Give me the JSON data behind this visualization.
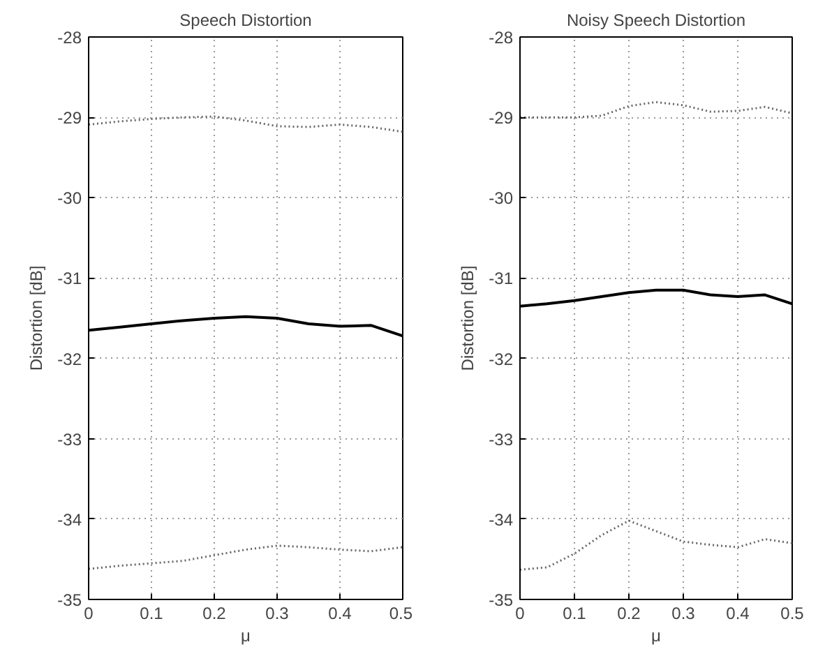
{
  "chart_data": [
    {
      "type": "line",
      "title": "Speech Distortion",
      "xlabel": "μ",
      "ylabel": "Distortion [dB]",
      "x": [
        0,
        0.05,
        0.1,
        0.15,
        0.2,
        0.25,
        0.3,
        0.35,
        0.4,
        0.45,
        0.5
      ],
      "xlim": [
        0,
        0.5
      ],
      "ylim": [
        -35,
        -28
      ],
      "xticks": [
        0,
        0.1,
        0.2,
        0.3,
        0.4,
        0.5
      ],
      "yticks": [
        -35,
        -34,
        -33,
        -32,
        -31,
        -30,
        -29,
        -28
      ],
      "grid": true,
      "series": [
        {
          "color": "#666666",
          "line_style": "dotted",
          "values": [
            -29.09,
            -29.05,
            -29.02,
            -29.0,
            -28.99,
            -29.04,
            -29.11,
            -29.12,
            -29.09,
            -29.12,
            -29.18
          ]
        },
        {
          "color": "#000000",
          "line_style": "solid",
          "values": [
            -31.65,
            -31.61,
            -31.57,
            -31.53,
            -31.5,
            -31.48,
            -31.5,
            -31.57,
            -31.6,
            -31.59,
            -31.72
          ]
        },
        {
          "color": "#666666",
          "line_style": "dotted",
          "values": [
            -34.62,
            -34.58,
            -34.55,
            -34.52,
            -34.45,
            -34.38,
            -34.33,
            -34.35,
            -34.38,
            -34.4,
            -34.35
          ]
        }
      ]
    },
    {
      "type": "line",
      "title": "Noisy Speech Distortion",
      "xlabel": "μ",
      "ylabel": "Distortion [dB]",
      "x": [
        0,
        0.05,
        0.1,
        0.15,
        0.2,
        0.25,
        0.3,
        0.35,
        0.4,
        0.45,
        0.5
      ],
      "xlim": [
        0,
        0.5
      ],
      "ylim": [
        -35,
        -28
      ],
      "xticks": [
        0,
        0.1,
        0.2,
        0.3,
        0.4,
        0.5
      ],
      "yticks": [
        -35,
        -34,
        -33,
        -32,
        -31,
        -30,
        -29,
        -28
      ],
      "grid": true,
      "series": [
        {
          "color": "#666666",
          "line_style": "dotted",
          "values": [
            -29.0,
            -29.0,
            -29.0,
            -28.98,
            -28.86,
            -28.81,
            -28.85,
            -28.93,
            -28.92,
            -28.87,
            -28.95
          ]
        },
        {
          "color": "#000000",
          "line_style": "solid",
          "values": [
            -31.35,
            -31.32,
            -31.28,
            -31.23,
            -31.18,
            -31.15,
            -31.15,
            -31.21,
            -31.23,
            -31.21,
            -31.32
          ]
        },
        {
          "color": "#666666",
          "line_style": "dotted",
          "values": [
            -34.63,
            -34.6,
            -34.43,
            -34.2,
            -34.02,
            -34.15,
            -34.28,
            -34.32,
            -34.35,
            -34.25,
            -34.3
          ]
        }
      ]
    }
  ]
}
